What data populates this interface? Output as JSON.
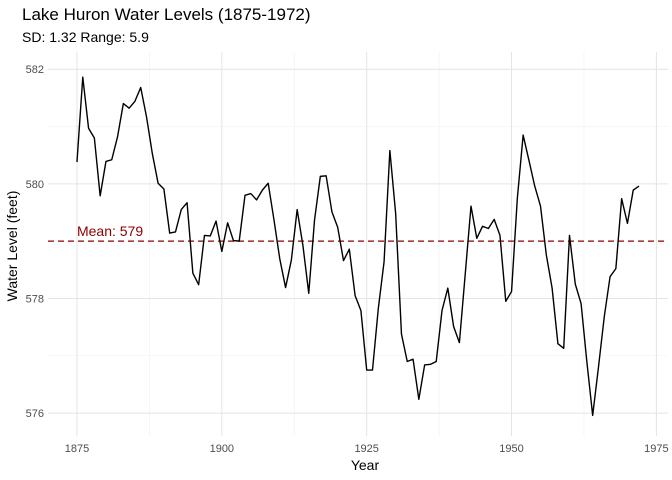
{
  "chart_data": {
    "type": "line",
    "title": "Lake Huron Water Levels (1875-1972)",
    "subtitle": "SD: 1.32 Range: 5.9",
    "xlabel": "Year",
    "ylabel": "Water Level (feet)",
    "xlim": [
      1870,
      1977
    ],
    "ylim": [
      575.6,
      582.3
    ],
    "x_ticks": [
      1875,
      1900,
      1925,
      1950,
      1975
    ],
    "y_ticks": [
      576,
      578,
      580,
      582
    ],
    "grid": true,
    "series": [
      {
        "color": "#000000",
        "x": [
          1875,
          1876,
          1877,
          1878,
          1879,
          1880,
          1881,
          1882,
          1883,
          1884,
          1885,
          1886,
          1887,
          1888,
          1889,
          1890,
          1891,
          1892,
          1893,
          1894,
          1895,
          1896,
          1897,
          1898,
          1899,
          1900,
          1901,
          1902,
          1903,
          1904,
          1905,
          1906,
          1907,
          1908,
          1909,
          1910,
          1911,
          1912,
          1913,
          1914,
          1915,
          1916,
          1917,
          1918,
          1919,
          1920,
          1921,
          1922,
          1923,
          1924,
          1925,
          1926,
          1927,
          1928,
          1929,
          1930,
          1931,
          1932,
          1933,
          1934,
          1935,
          1936,
          1937,
          1938,
          1939,
          1940,
          1941,
          1942,
          1943,
          1944,
          1945,
          1946,
          1947,
          1948,
          1949,
          1950,
          1951,
          1952,
          1953,
          1954,
          1955,
          1956,
          1957,
          1958,
          1959,
          1960,
          1961,
          1962,
          1963,
          1964,
          1965,
          1966,
          1967,
          1968,
          1969,
          1970,
          1971,
          1972
        ],
        "y": [
          580.38,
          581.86,
          580.97,
          580.8,
          579.79,
          580.39,
          580.42,
          580.82,
          581.4,
          581.32,
          581.44,
          581.68,
          581.17,
          580.53,
          580.01,
          579.91,
          579.14,
          579.16,
          579.55,
          579.67,
          578.44,
          578.24,
          579.1,
          579.09,
          579.35,
          578.82,
          579.32,
          579.01,
          579.0,
          579.8,
          579.83,
          579.72,
          579.89,
          580.01,
          579.37,
          578.69,
          578.19,
          578.67,
          579.55,
          578.92,
          578.09,
          579.37,
          580.13,
          580.14,
          579.51,
          579.24,
          578.66,
          578.86,
          578.05,
          577.79,
          576.75,
          576.75,
          577.82,
          578.64,
          580.58,
          579.48,
          577.38,
          576.9,
          576.94,
          576.24,
          576.84,
          576.85,
          576.9,
          577.79,
          578.18,
          577.51,
          577.23,
          578.42,
          579.61,
          579.05,
          579.26,
          579.22,
          579.38,
          579.1,
          577.95,
          578.12,
          579.75,
          580.85,
          580.41,
          579.96,
          579.61,
          578.76,
          578.18,
          577.21,
          577.13,
          579.1,
          578.25,
          577.91,
          576.89,
          575.96,
          576.8,
          577.68,
          578.38,
          578.52,
          579.74,
          579.31,
          579.89,
          579.96
        ]
      }
    ],
    "mean": {
      "value": 579.0,
      "label": "Mean: 579",
      "color": "#8b0000",
      "style": "dashed"
    }
  }
}
